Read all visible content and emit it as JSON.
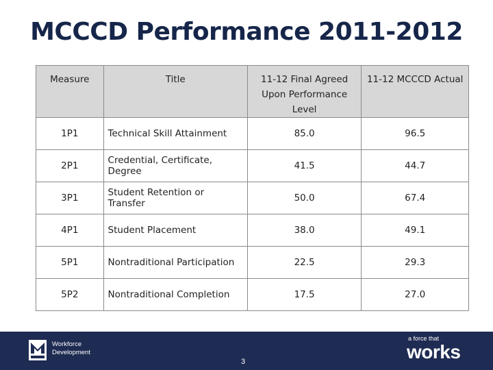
{
  "title": "MCCCD Performance 2011-2012",
  "table": {
    "headers": [
      "Measure",
      "Title",
      "11-12 Final Agreed Upon Performance Level",
      "11-12 MCCCD Actual"
    ],
    "rows": [
      [
        "1P1",
        "Technical Skill Attainment",
        "85.0",
        "96.5"
      ],
      [
        "2P1",
        "Credential, Certificate, Degree",
        "41.5",
        "44.7"
      ],
      [
        "3P1",
        "Student Retention or Transfer",
        "50.0",
        "67.4"
      ],
      [
        "4P1",
        "Student Placement",
        "38.0",
        "49.1"
      ],
      [
        "5P1",
        "Nontraditional Participation",
        "22.5",
        "29.3"
      ],
      [
        "5P2",
        "Nontraditional Completion",
        "17.5",
        "27.0"
      ]
    ]
  },
  "footer": {
    "logo_line1": "Workforce",
    "logo_line2": "Development",
    "page_number": "3",
    "tagline_small": "a force that",
    "tagline_big": "works"
  },
  "colors": {
    "title": "#16264a",
    "header_bg": "#d7d7d7",
    "footer_bg": "#1e2b52"
  }
}
